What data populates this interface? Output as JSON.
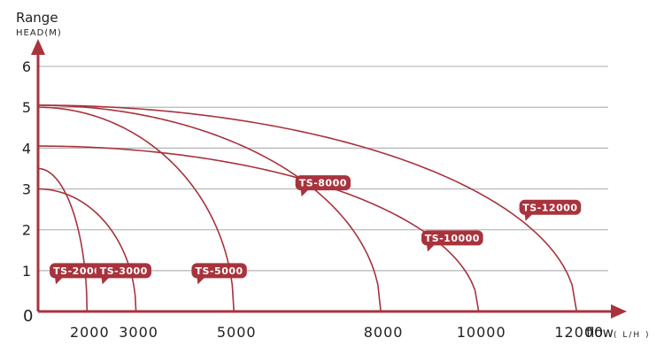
{
  "chart_data": {
    "type": "line",
    "ylabel_title": "Range",
    "ylabel": "HEAD(M)",
    "xlabel": "flow",
    "xlabel_unit": "( L/H )",
    "origin_label": "0",
    "xlim": [
      1000,
      12700
    ],
    "ylim": [
      0,
      6.5
    ],
    "x_ticks": [
      {
        "value": 2000,
        "label": "2000"
      },
      {
        "value": 3000,
        "label": "3000"
      },
      {
        "value": 5000,
        "label": "5000"
      },
      {
        "value": 8000,
        "label": "8000"
      },
      {
        "value": 10000,
        "label": "10000"
      },
      {
        "value": 12000,
        "label": "12000"
      }
    ],
    "y_ticks": [
      {
        "value": 1,
        "label": "1"
      },
      {
        "value": 2,
        "label": "2"
      },
      {
        "value": 3,
        "label": "3"
      },
      {
        "value": 4,
        "label": "4"
      },
      {
        "value": 5,
        "label": "5"
      },
      {
        "value": 6,
        "label": "6"
      }
    ],
    "grid": true,
    "series": [
      {
        "name": "TS-2000",
        "x_start": 1000,
        "x_end": 2000,
        "head_max": 3.5,
        "label_at": [
          1800,
          1.0
        ]
      },
      {
        "name": "TS-3000",
        "x_start": 1000,
        "x_end": 3000,
        "head_max": 3.0,
        "label_at": [
          2750,
          1.0
        ]
      },
      {
        "name": "TS-5000",
        "x_start": 1000,
        "x_end": 5000,
        "head_max": 5.0,
        "label_at": [
          4700,
          1.0
        ]
      },
      {
        "name": "TS-8000",
        "x_start": 1000,
        "x_end": 8000,
        "head_max": 5.05,
        "label_at": [
          6820,
          3.15
        ]
      },
      {
        "name": "TS-10000",
        "x_start": 1000,
        "x_end": 10000,
        "head_max": 4.05,
        "label_at": [
          9460,
          1.8
        ]
      },
      {
        "name": "TS-12000",
        "x_start": 1000,
        "x_end": 12000,
        "head_max": 5.05,
        "label_at": [
          11460,
          2.55
        ]
      }
    ]
  },
  "colors": {
    "accent": "#a8333d",
    "grid": "#b4b4b4",
    "text": "#222222"
  }
}
